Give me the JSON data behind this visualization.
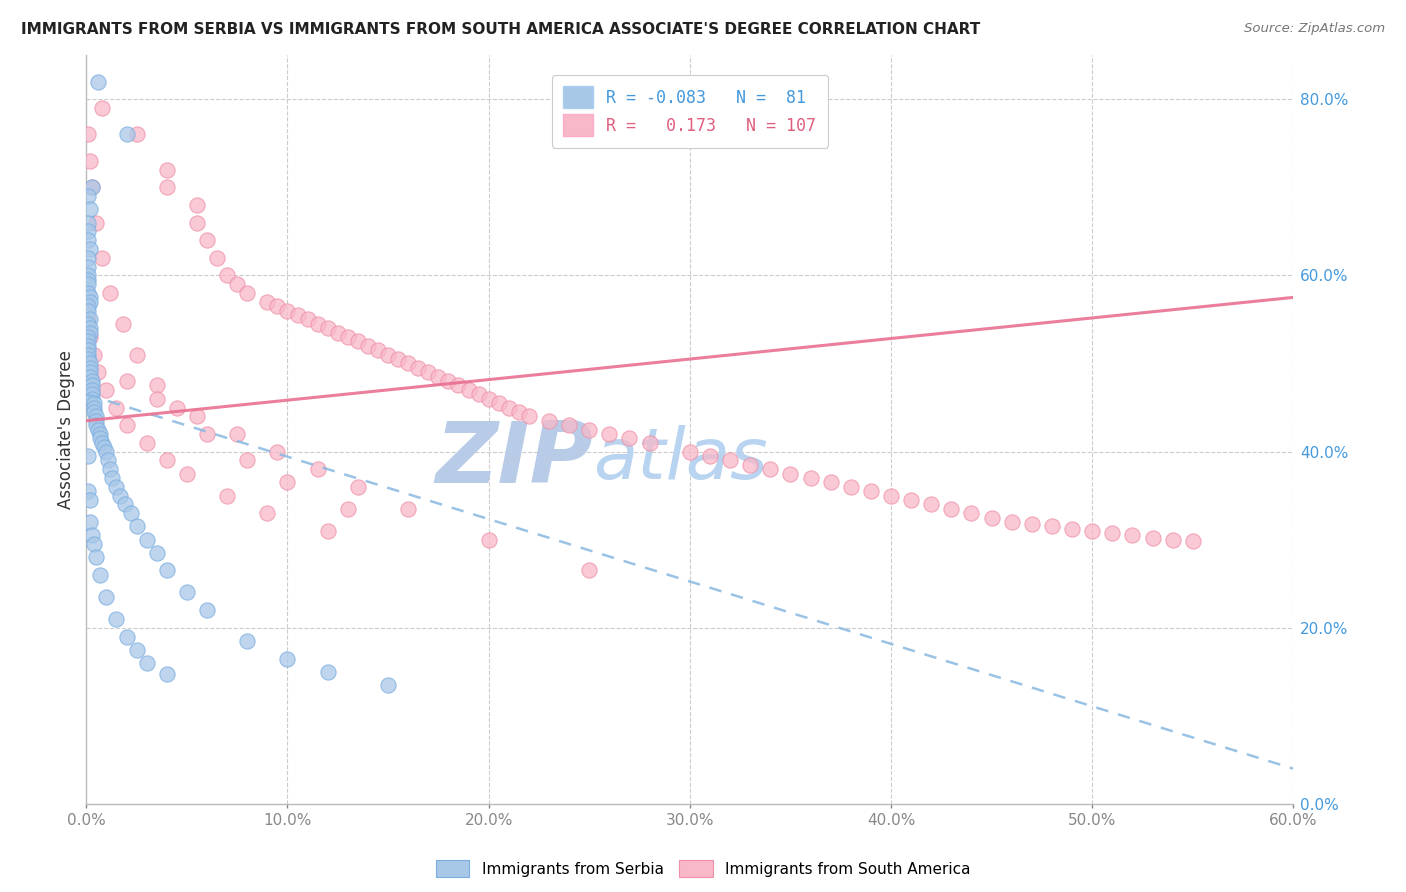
{
  "title": "IMMIGRANTS FROM SERBIA VS IMMIGRANTS FROM SOUTH AMERICA ASSOCIATE'S DEGREE CORRELATION CHART",
  "source": "Source: ZipAtlas.com",
  "ylabel_label": "Associate's Degree",
  "legend_label1": "Immigrants from Serbia",
  "legend_label2": "Immigrants from South America",
  "r1": "-0.083",
  "n1": "81",
  "r2": "0.173",
  "n2": "107",
  "color_blue": "#a8c8e8",
  "color_blue_edge": "#7aade0",
  "color_pink": "#f8b8c8",
  "color_pink_edge": "#f090a8",
  "color_blue_line": "#88b8e0",
  "color_pink_line": "#e87090",
  "color_blue_text": "#4499dd",
  "color_pink_text": "#e06080",
  "watermark_zip": "#b8cce8",
  "watermark_atlas": "#b8d4f0",
  "xlim": [
    0.0,
    0.6
  ],
  "ylim": [
    0.0,
    0.85
  ],
  "x_ticks": [
    0.0,
    0.1,
    0.2,
    0.3,
    0.4,
    0.5,
    0.6
  ],
  "y_ticks": [
    0.0,
    0.2,
    0.4,
    0.6,
    0.8
  ],
  "blue_line_x": [
    0.0,
    0.6
  ],
  "blue_line_y": [
    0.465,
    0.04
  ],
  "pink_line_x": [
    0.0,
    0.6
  ],
  "pink_line_y": [
    0.435,
    0.575
  ],
  "serbia_x": [
    0.006,
    0.02,
    0.003,
    0.001,
    0.002,
    0.001,
    0.001,
    0.001,
    0.002,
    0.001,
    0.001,
    0.001,
    0.001,
    0.001,
    0.001,
    0.002,
    0.002,
    0.001,
    0.001,
    0.002,
    0.001,
    0.002,
    0.002,
    0.001,
    0.001,
    0.001,
    0.001,
    0.001,
    0.001,
    0.002,
    0.002,
    0.002,
    0.002,
    0.003,
    0.003,
    0.003,
    0.003,
    0.003,
    0.004,
    0.004,
    0.004,
    0.005,
    0.005,
    0.005,
    0.006,
    0.007,
    0.007,
    0.008,
    0.009,
    0.01,
    0.011,
    0.012,
    0.013,
    0.015,
    0.017,
    0.019,
    0.022,
    0.025,
    0.03,
    0.035,
    0.04,
    0.05,
    0.06,
    0.08,
    0.1,
    0.12,
    0.15,
    0.001,
    0.001,
    0.002,
    0.002,
    0.003,
    0.004,
    0.005,
    0.007,
    0.01,
    0.015,
    0.02,
    0.025,
    0.03,
    0.04
  ],
  "serbia_y": [
    0.82,
    0.76,
    0.7,
    0.69,
    0.675,
    0.66,
    0.65,
    0.64,
    0.63,
    0.62,
    0.61,
    0.6,
    0.595,
    0.59,
    0.58,
    0.575,
    0.57,
    0.565,
    0.56,
    0.55,
    0.545,
    0.54,
    0.535,
    0.53,
    0.525,
    0.52,
    0.515,
    0.51,
    0.505,
    0.5,
    0.495,
    0.49,
    0.485,
    0.48,
    0.475,
    0.47,
    0.465,
    0.46,
    0.455,
    0.45,
    0.445,
    0.44,
    0.435,
    0.43,
    0.425,
    0.42,
    0.415,
    0.41,
    0.405,
    0.4,
    0.39,
    0.38,
    0.37,
    0.36,
    0.35,
    0.34,
    0.33,
    0.315,
    0.3,
    0.285,
    0.265,
    0.24,
    0.22,
    0.185,
    0.165,
    0.15,
    0.135,
    0.395,
    0.355,
    0.345,
    0.32,
    0.305,
    0.295,
    0.28,
    0.26,
    0.235,
    0.21,
    0.19,
    0.175,
    0.16,
    0.148
  ],
  "southam_x": [
    0.008,
    0.025,
    0.04,
    0.04,
    0.055,
    0.055,
    0.06,
    0.065,
    0.07,
    0.075,
    0.08,
    0.09,
    0.095,
    0.1,
    0.105,
    0.11,
    0.115,
    0.12,
    0.125,
    0.13,
    0.135,
    0.14,
    0.145,
    0.15,
    0.155,
    0.16,
    0.165,
    0.17,
    0.175,
    0.18,
    0.185,
    0.19,
    0.195,
    0.2,
    0.205,
    0.21,
    0.215,
    0.22,
    0.23,
    0.24,
    0.25,
    0.26,
    0.27,
    0.28,
    0.3,
    0.31,
    0.32,
    0.33,
    0.34,
    0.35,
    0.36,
    0.37,
    0.38,
    0.39,
    0.4,
    0.41,
    0.42,
    0.43,
    0.44,
    0.45,
    0.46,
    0.47,
    0.48,
    0.49,
    0.5,
    0.51,
    0.52,
    0.53,
    0.54,
    0.55,
    0.001,
    0.002,
    0.003,
    0.005,
    0.008,
    0.012,
    0.018,
    0.025,
    0.035,
    0.045,
    0.06,
    0.08,
    0.1,
    0.13,
    0.001,
    0.002,
    0.004,
    0.006,
    0.01,
    0.015,
    0.02,
    0.03,
    0.04,
    0.05,
    0.07,
    0.09,
    0.12,
    0.02,
    0.035,
    0.055,
    0.075,
    0.095,
    0.115,
    0.135,
    0.16,
    0.2,
    0.25
  ],
  "southam_y": [
    0.79,
    0.76,
    0.72,
    0.7,
    0.68,
    0.66,
    0.64,
    0.62,
    0.6,
    0.59,
    0.58,
    0.57,
    0.565,
    0.56,
    0.555,
    0.55,
    0.545,
    0.54,
    0.535,
    0.53,
    0.525,
    0.52,
    0.515,
    0.51,
    0.505,
    0.5,
    0.495,
    0.49,
    0.485,
    0.48,
    0.475,
    0.47,
    0.465,
    0.46,
    0.455,
    0.45,
    0.445,
    0.44,
    0.435,
    0.43,
    0.425,
    0.42,
    0.415,
    0.41,
    0.4,
    0.395,
    0.39,
    0.385,
    0.38,
    0.375,
    0.37,
    0.365,
    0.36,
    0.355,
    0.35,
    0.345,
    0.34,
    0.335,
    0.33,
    0.325,
    0.32,
    0.318,
    0.315,
    0.312,
    0.31,
    0.308,
    0.305,
    0.302,
    0.3,
    0.298,
    0.76,
    0.73,
    0.7,
    0.66,
    0.62,
    0.58,
    0.545,
    0.51,
    0.475,
    0.45,
    0.42,
    0.39,
    0.365,
    0.335,
    0.55,
    0.53,
    0.51,
    0.49,
    0.47,
    0.45,
    0.43,
    0.41,
    0.39,
    0.375,
    0.35,
    0.33,
    0.31,
    0.48,
    0.46,
    0.44,
    0.42,
    0.4,
    0.38,
    0.36,
    0.335,
    0.3,
    0.265
  ]
}
